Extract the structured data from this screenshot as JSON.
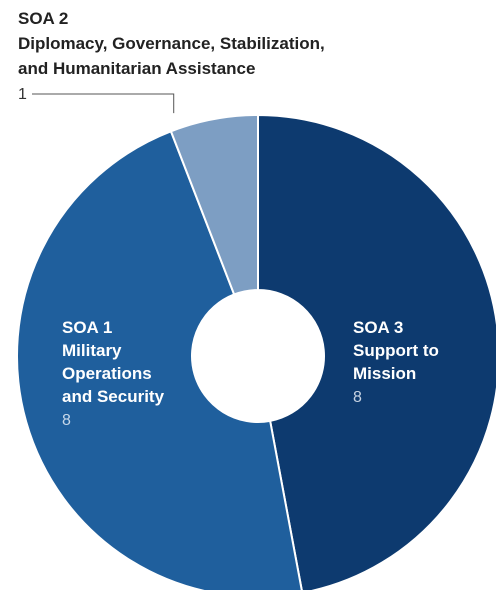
{
  "chart_data": {
    "type": "pie",
    "title": "",
    "slices": [
      {
        "label_lines": [
          "SOA 3",
          "Support to",
          "Mission"
        ],
        "value": 8,
        "color": "#0d3a6f",
        "value_color": "#c7d3e3"
      },
      {
        "label_lines": [
          "SOA 1",
          "Military",
          "Operations",
          "and Security"
        ],
        "value": 8,
        "color": "#1f5f9d",
        "value_color": "#c7d8ea"
      },
      {
        "label_lines": [
          "SOA 2",
          "Diplomacy, Governance, Stabilization,",
          "and Humanitarian Assistance"
        ],
        "value": 1,
        "color": "#7d9ec3",
        "value_color": "#333333"
      }
    ]
  }
}
